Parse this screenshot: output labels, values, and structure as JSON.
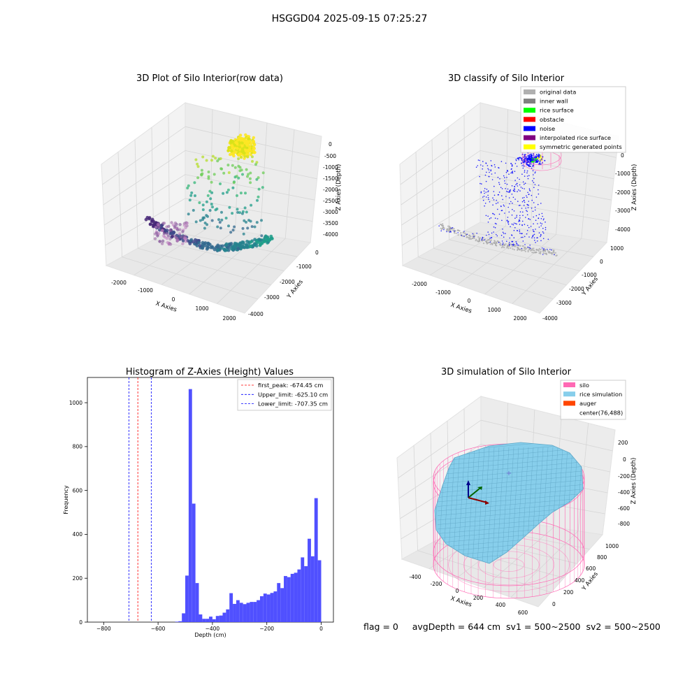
{
  "figure_title": "HSGGD04 2025-09-15 07:25:27",
  "footer": {
    "flag": "flag = 0",
    "avg": "avgDepth = 644 cm",
    "sv1": "sv1 = 500~2500",
    "sv2": "sv2 = 500~2500"
  },
  "colors": {
    "hist_bar": "#4d4dff",
    "first_peak": "#ff0000",
    "limit_line": "#0000ff",
    "pane": "#f2f2f2",
    "grid": "#d9d9d9",
    "silo": "#ff69b4",
    "rice": "#87ceeb",
    "auger": "#ff4500"
  },
  "chart_data": [
    {
      "type": "scatter",
      "panel": "3d-raw",
      "title": "3D Plot of Silo Interior(row data)",
      "xlabel": "X Axies",
      "ylabel": "Y Axies",
      "zlabel": "Z Axies (Depth)",
      "x_ticks": [
        "-2000",
        "-1000",
        "0",
        "1000",
        "2000"
      ],
      "y_ticks": [
        "0",
        "-1000",
        "-2000",
        "-3000",
        "-4000"
      ],
      "z_ticks": [
        "0",
        "-500",
        "-1000",
        "-1500",
        "-2000",
        "-2500",
        "-3000",
        "-3500",
        "-4000"
      ],
      "colormap": "viridis"
    },
    {
      "type": "scatter",
      "panel": "3d-classify",
      "title": "3D classify of Silo Interior",
      "xlabel": "X Axies",
      "ylabel": "Y Axies",
      "zlabel": "Z Axies (Depth)",
      "x_ticks": [
        "-2000",
        "-1000",
        "0",
        "1000",
        "2000"
      ],
      "y_ticks": [
        "1000",
        "0",
        "-1000",
        "-2000",
        "-3000",
        "-4000"
      ],
      "z_ticks": [
        "0",
        "-1000",
        "-2000",
        "-3000",
        "-4000"
      ],
      "legend": [
        {
          "label": "original data",
          "color": "#b0b0b0"
        },
        {
          "label": "inner wall",
          "color": "#808080"
        },
        {
          "label": "rice surface",
          "color": "#00ff00"
        },
        {
          "label": "obstacle",
          "color": "#ff0000"
        },
        {
          "label": "noise",
          "color": "#0000ff"
        },
        {
          "label": "interpolated rice surface",
          "color": "#800080"
        },
        {
          "label": "symmetric generated points",
          "color": "#ffff00"
        }
      ]
    },
    {
      "type": "bar",
      "panel": "histogram",
      "title": "Histogram of Z-Axies (Height) Values",
      "xlabel": "Depth (cm)",
      "ylabel": "Frequency",
      "xlim": [
        -860,
        45
      ],
      "ylim": [
        0,
        1115
      ],
      "x_ticks": [
        -800,
        -600,
        -400,
        -200,
        0
      ],
      "y_ticks": [
        0,
        200,
        400,
        600,
        800,
        1000
      ],
      "bin_width": 12.5,
      "bins_start": [
        -775,
        -762.5,
        -750,
        -737.5,
        -725,
        -712.5,
        -700,
        -687.5,
        -675,
        -662.5,
        -650,
        -637.5,
        -625,
        -612.5,
        -600,
        -587.5,
        -575,
        -562.5,
        -550,
        -537.5,
        -525,
        -512.5,
        -500,
        -487.5,
        -475,
        -462.5,
        -450,
        -437.5,
        -425,
        -412.5,
        -400,
        -387.5,
        -375,
        -362.5,
        -350,
        -337.5,
        -325,
        -312.5,
        -300,
        -287.5,
        -275,
        -262.5,
        -250,
        -237.5,
        -225,
        -212.5,
        -200,
        -187.5,
        -175,
        -162.5,
        -150,
        -137.5,
        -125,
        -112.5,
        -100,
        -87.5,
        -75,
        -62.5,
        -50,
        -37.5,
        -25,
        -12.5
      ],
      "counts": [
        0,
        0,
        0,
        2,
        4,
        40,
        212,
        1062,
        540,
        178,
        35,
        15,
        15,
        25,
        13,
        28,
        30,
        43,
        58,
        132,
        83,
        100,
        88,
        82,
        88,
        92,
        92,
        100,
        118,
        130,
        126,
        133,
        140,
        178,
        155,
        210,
        205,
        220,
        225,
        240,
        295,
        255,
        380,
        300,
        565,
        282
      ],
      "counts_start_index": 16,
      "vlines": [
        {
          "label": "first_peak: -674.45 cm",
          "x": -674.45,
          "color": "#ff0000"
        },
        {
          "label": "Upper_limit: -625.10 cm",
          "x": -625.1,
          "color": "#0000ff"
        },
        {
          "label": "Lower_limit: -707.35 cm",
          "x": -707.35,
          "color": "#0000ff"
        }
      ]
    },
    {
      "type": "surface",
      "panel": "3d-simulation",
      "title": "3D simulation of Silo Interior",
      "xlabel": "X Axies",
      "ylabel": "Y Axies",
      "zlabel": "Z Axies (Depth)",
      "x_ticks": [
        "-400",
        "-200",
        "0",
        "200",
        "400",
        "600"
      ],
      "y_ticks": [
        "0",
        "200",
        "400",
        "600",
        "800",
        "1000"
      ],
      "z_ticks": [
        "200",
        "0",
        "-200",
        "-400",
        "-600",
        "-800"
      ],
      "legend": [
        {
          "label": "silo",
          "color": "#ff69b4"
        },
        {
          "label": "rice simulation",
          "color": "#87ceeb"
        },
        {
          "label": "auger",
          "color": "#ff4500"
        },
        {
          "label": "center(76,488)",
          "color": ""
        }
      ]
    }
  ]
}
